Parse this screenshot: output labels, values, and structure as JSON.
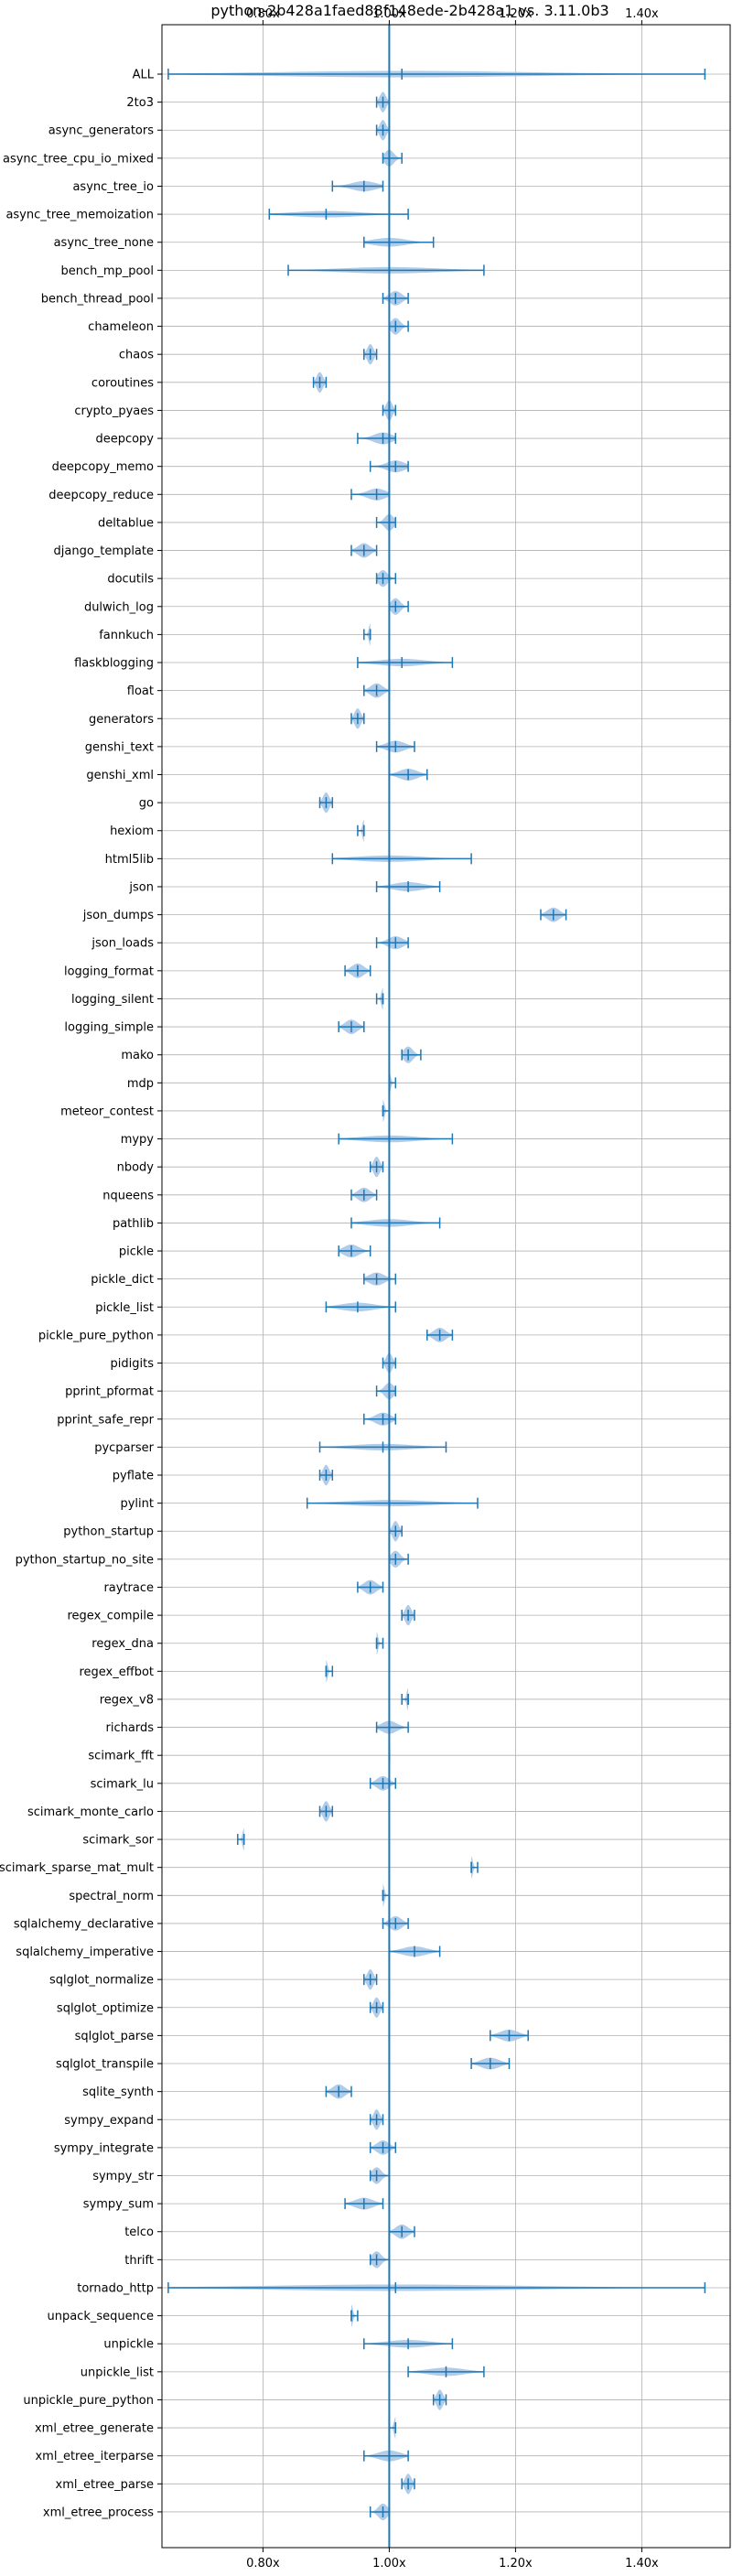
{
  "chart_data": {
    "type": "violin",
    "orientation": "horizontal",
    "title": "python-2b428a1faed88f148ede-2b428a1 vs. 3.11.0b3",
    "xlabel": "",
    "ylabel": "",
    "xlim": [
      0.64,
      1.54
    ],
    "xticks": [
      0.8,
      1.0,
      1.2,
      1.4
    ],
    "xtick_labels": [
      "0.80x",
      "1.00x",
      "1.20x",
      "1.40x"
    ],
    "xtick_positions": [
      "top",
      "bottom"
    ],
    "reference_line": 1.0,
    "grid": true,
    "colors": {
      "body": "#a8c7e6",
      "lines": "#1f77b4",
      "grid": "#b0b0b0"
    },
    "benchmarks": [
      {
        "name": "ALL",
        "min": 0.65,
        "median": 1.02,
        "max": 1.5
      },
      {
        "name": "2to3",
        "min": 0.98,
        "median": 0.99,
        "max": 1.0
      },
      {
        "name": "async_generators",
        "min": 0.98,
        "median": 0.99,
        "max": 1.0
      },
      {
        "name": "async_tree_cpu_io_mixed",
        "min": 0.99,
        "median": 1.0,
        "max": 1.02
      },
      {
        "name": "async_tree_io",
        "min": 0.91,
        "median": 0.96,
        "max": 0.99
      },
      {
        "name": "async_tree_memoization",
        "min": 0.81,
        "median": 0.9,
        "max": 1.03
      },
      {
        "name": "async_tree_none",
        "min": 0.96,
        "median": 1.0,
        "max": 1.07
      },
      {
        "name": "bench_mp_pool",
        "min": 0.84,
        "median": 1.0,
        "max": 1.15
      },
      {
        "name": "bench_thread_pool",
        "min": 0.99,
        "median": 1.01,
        "max": 1.03
      },
      {
        "name": "chameleon",
        "min": 1.0,
        "median": 1.01,
        "max": 1.03
      },
      {
        "name": "chaos",
        "min": 0.96,
        "median": 0.97,
        "max": 0.98
      },
      {
        "name": "coroutines",
        "min": 0.88,
        "median": 0.89,
        "max": 0.9
      },
      {
        "name": "crypto_pyaes",
        "min": 0.99,
        "median": 1.0,
        "max": 1.01
      },
      {
        "name": "deepcopy",
        "min": 0.95,
        "median": 0.99,
        "max": 1.01
      },
      {
        "name": "deepcopy_memo",
        "min": 0.97,
        "median": 1.01,
        "max": 1.03
      },
      {
        "name": "deepcopy_reduce",
        "min": 0.94,
        "median": 0.98,
        "max": 1.0
      },
      {
        "name": "deltablue",
        "min": 0.98,
        "median": 1.0,
        "max": 1.01
      },
      {
        "name": "django_template",
        "min": 0.94,
        "median": 0.96,
        "max": 0.98
      },
      {
        "name": "docutils",
        "min": 0.98,
        "median": 0.99,
        "max": 1.01
      },
      {
        "name": "dulwich_log",
        "min": 1.0,
        "median": 1.01,
        "max": 1.03
      },
      {
        "name": "fannkuch",
        "min": 0.96,
        "median": 0.97,
        "max": 0.97
      },
      {
        "name": "flaskblogging",
        "min": 0.95,
        "median": 1.02,
        "max": 1.1
      },
      {
        "name": "float",
        "min": 0.96,
        "median": 0.98,
        "max": 1.0
      },
      {
        "name": "generators",
        "min": 0.94,
        "median": 0.95,
        "max": 0.96
      },
      {
        "name": "genshi_text",
        "min": 0.98,
        "median": 1.01,
        "max": 1.04
      },
      {
        "name": "genshi_xml",
        "min": 1.0,
        "median": 1.03,
        "max": 1.06
      },
      {
        "name": "go",
        "min": 0.89,
        "median": 0.9,
        "max": 0.91
      },
      {
        "name": "hexiom",
        "min": 0.95,
        "median": 0.96,
        "max": 0.96
      },
      {
        "name": "html5lib",
        "min": 0.91,
        "median": 1.0,
        "max": 1.13
      },
      {
        "name": "json",
        "min": 0.98,
        "median": 1.03,
        "max": 1.08
      },
      {
        "name": "json_dumps",
        "min": 1.24,
        "median": 1.26,
        "max": 1.28
      },
      {
        "name": "json_loads",
        "min": 0.98,
        "median": 1.01,
        "max": 1.03
      },
      {
        "name": "logging_format",
        "min": 0.93,
        "median": 0.95,
        "max": 0.97
      },
      {
        "name": "logging_silent",
        "min": 0.98,
        "median": 0.99,
        "max": 0.99
      },
      {
        "name": "logging_simple",
        "min": 0.92,
        "median": 0.94,
        "max": 0.96
      },
      {
        "name": "mako",
        "min": 1.02,
        "median": 1.03,
        "max": 1.05
      },
      {
        "name": "mdp",
        "min": 1.0,
        "median": 1.0,
        "max": 1.01
      },
      {
        "name": "meteor_contest",
        "min": 0.99,
        "median": 0.99,
        "max": 1.0
      },
      {
        "name": "mypy",
        "min": 0.92,
        "median": 1.0,
        "max": 1.1
      },
      {
        "name": "nbody",
        "min": 0.97,
        "median": 0.98,
        "max": 0.99
      },
      {
        "name": "nqueens",
        "min": 0.94,
        "median": 0.96,
        "max": 0.98
      },
      {
        "name": "pathlib",
        "min": 0.94,
        "median": 1.0,
        "max": 1.08
      },
      {
        "name": "pickle",
        "min": 0.92,
        "median": 0.94,
        "max": 0.97
      },
      {
        "name": "pickle_dict",
        "min": 0.96,
        "median": 0.98,
        "max": 1.01
      },
      {
        "name": "pickle_list",
        "min": 0.9,
        "median": 0.95,
        "max": 1.01
      },
      {
        "name": "pickle_pure_python",
        "min": 1.06,
        "median": 1.08,
        "max": 1.1
      },
      {
        "name": "pidigits",
        "min": 0.99,
        "median": 1.0,
        "max": 1.01
      },
      {
        "name": "pprint_pformat",
        "min": 0.98,
        "median": 1.0,
        "max": 1.01
      },
      {
        "name": "pprint_safe_repr",
        "min": 0.96,
        "median": 0.99,
        "max": 1.01
      },
      {
        "name": "pycparser",
        "min": 0.89,
        "median": 0.99,
        "max": 1.09
      },
      {
        "name": "pyflate",
        "min": 0.89,
        "median": 0.9,
        "max": 0.91
      },
      {
        "name": "pylint",
        "min": 0.87,
        "median": 1.0,
        "max": 1.14
      },
      {
        "name": "python_startup",
        "min": 1.0,
        "median": 1.01,
        "max": 1.02
      },
      {
        "name": "python_startup_no_site",
        "min": 1.0,
        "median": 1.01,
        "max": 1.03
      },
      {
        "name": "raytrace",
        "min": 0.95,
        "median": 0.97,
        "max": 0.99
      },
      {
        "name": "regex_compile",
        "min": 1.02,
        "median": 1.03,
        "max": 1.04
      },
      {
        "name": "regex_dna",
        "min": 0.98,
        "median": 0.98,
        "max": 0.99
      },
      {
        "name": "regex_effbot",
        "min": 0.9,
        "median": 0.9,
        "max": 0.91
      },
      {
        "name": "regex_v8",
        "min": 1.02,
        "median": 1.03,
        "max": 1.03
      },
      {
        "name": "richards",
        "min": 0.98,
        "median": 1.0,
        "max": 1.03
      },
      {
        "name": "scimark_fft",
        "min": 1.0,
        "median": 1.0,
        "max": 1.0
      },
      {
        "name": "scimark_lu",
        "min": 0.97,
        "median": 0.99,
        "max": 1.01
      },
      {
        "name": "scimark_monte_carlo",
        "min": 0.89,
        "median": 0.9,
        "max": 0.91
      },
      {
        "name": "scimark_sor",
        "min": 0.76,
        "median": 0.77,
        "max": 0.77
      },
      {
        "name": "scimark_sparse_mat_mult",
        "min": 1.13,
        "median": 1.13,
        "max": 1.14
      },
      {
        "name": "spectral_norm",
        "min": 0.99,
        "median": 0.99,
        "max": 1.0
      },
      {
        "name": "sqlalchemy_declarative",
        "min": 0.99,
        "median": 1.01,
        "max": 1.03
      },
      {
        "name": "sqlalchemy_imperative",
        "min": 1.0,
        "median": 1.04,
        "max": 1.08
      },
      {
        "name": "sqlglot_normalize",
        "min": 0.96,
        "median": 0.97,
        "max": 0.98
      },
      {
        "name": "sqlglot_optimize",
        "min": 0.97,
        "median": 0.98,
        "max": 0.99
      },
      {
        "name": "sqlglot_parse",
        "min": 1.16,
        "median": 1.19,
        "max": 1.22
      },
      {
        "name": "sqlglot_transpile",
        "min": 1.13,
        "median": 1.16,
        "max": 1.19
      },
      {
        "name": "sqlite_synth",
        "min": 0.9,
        "median": 0.92,
        "max": 0.94
      },
      {
        "name": "sympy_expand",
        "min": 0.97,
        "median": 0.98,
        "max": 0.99
      },
      {
        "name": "sympy_integrate",
        "min": 0.97,
        "median": 0.99,
        "max": 1.01
      },
      {
        "name": "sympy_str",
        "min": 0.97,
        "median": 0.98,
        "max": 1.0
      },
      {
        "name": "sympy_sum",
        "min": 0.93,
        "median": 0.96,
        "max": 0.99
      },
      {
        "name": "telco",
        "min": 1.0,
        "median": 1.02,
        "max": 1.04
      },
      {
        "name": "thrift",
        "min": 0.97,
        "median": 0.98,
        "max": 1.0
      },
      {
        "name": "tornado_http",
        "min": 0.65,
        "median": 1.01,
        "max": 1.5
      },
      {
        "name": "unpack_sequence",
        "min": 0.94,
        "median": 0.94,
        "max": 0.95
      },
      {
        "name": "unpickle",
        "min": 0.96,
        "median": 1.03,
        "max": 1.1
      },
      {
        "name": "unpickle_list",
        "min": 1.03,
        "median": 1.09,
        "max": 1.15
      },
      {
        "name": "unpickle_pure_python",
        "min": 1.07,
        "median": 1.08,
        "max": 1.09
      },
      {
        "name": "xml_etree_generate",
        "min": 1.0,
        "median": 1.01,
        "max": 1.01
      },
      {
        "name": "xml_etree_iterparse",
        "min": 0.96,
        "median": 1.0,
        "max": 1.03
      },
      {
        "name": "xml_etree_parse",
        "min": 1.02,
        "median": 1.03,
        "max": 1.04
      },
      {
        "name": "xml_etree_process",
        "min": 0.97,
        "median": 0.99,
        "max": 1.0
      }
    ]
  }
}
